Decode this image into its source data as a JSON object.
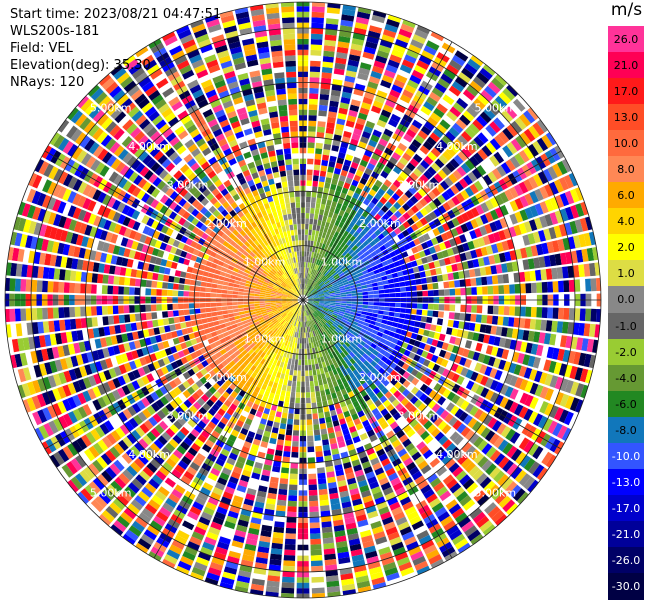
{
  "header": {
    "start_time": "Start time: 2023/08/21 04:47:51",
    "station": "WLS200s-181",
    "field": "Field: VEL",
    "elevation": "Elevation(deg): 35.30",
    "nrays": "NRays: 120"
  },
  "colorbar": {
    "unit": "m/s",
    "labels": [
      "26.0",
      "21.0",
      "17.0",
      "13.0",
      "10.0",
      "8.0",
      "6.0",
      "4.0",
      "2.0",
      "1.0",
      "0.0",
      "-1.0",
      "-2.0",
      "-4.0",
      "-6.0",
      "-8.0",
      "-10.0",
      "-13.0",
      "-17.0",
      "-21.0",
      "-26.0",
      "-30.0"
    ],
    "colors": [
      "#ff3399",
      "#ff0055",
      "#ff1a1a",
      "#ff4d26",
      "#ff6a3d",
      "#ff8855",
      "#ffaa00",
      "#ffd400",
      "#ffff00",
      "#dddd44",
      "#888888",
      "#666666",
      "#99cc33",
      "#669933",
      "#228822",
      "#1177bb",
      "#3355ff",
      "#0000ff",
      "#0000cc",
      "#000099",
      "#000066",
      "#000044"
    ]
  },
  "chart_data": {
    "type": "heatmap",
    "subtype": "radar PPI (polar)",
    "field": "VEL",
    "units": "m/s",
    "n_rays": 120,
    "range_rings_km": [
      1.0,
      2.0,
      3.0,
      4.0,
      5.0
    ],
    "ring_labels": [
      "1.00km",
      "2.00km",
      "3.00km",
      "4.00km",
      "5.00km"
    ],
    "color_scale": [
      -30.0,
      26.0
    ],
    "pattern": {
      "inner_region_km": 2.2,
      "west_side": "positive velocities (red/orange/yellow, ~4 to 13 m/s)",
      "east_side": "negative velocities (blue/green, ~-4 to -17 m/s)",
      "outer_region": "noise (random colors across full scale)"
    }
  }
}
